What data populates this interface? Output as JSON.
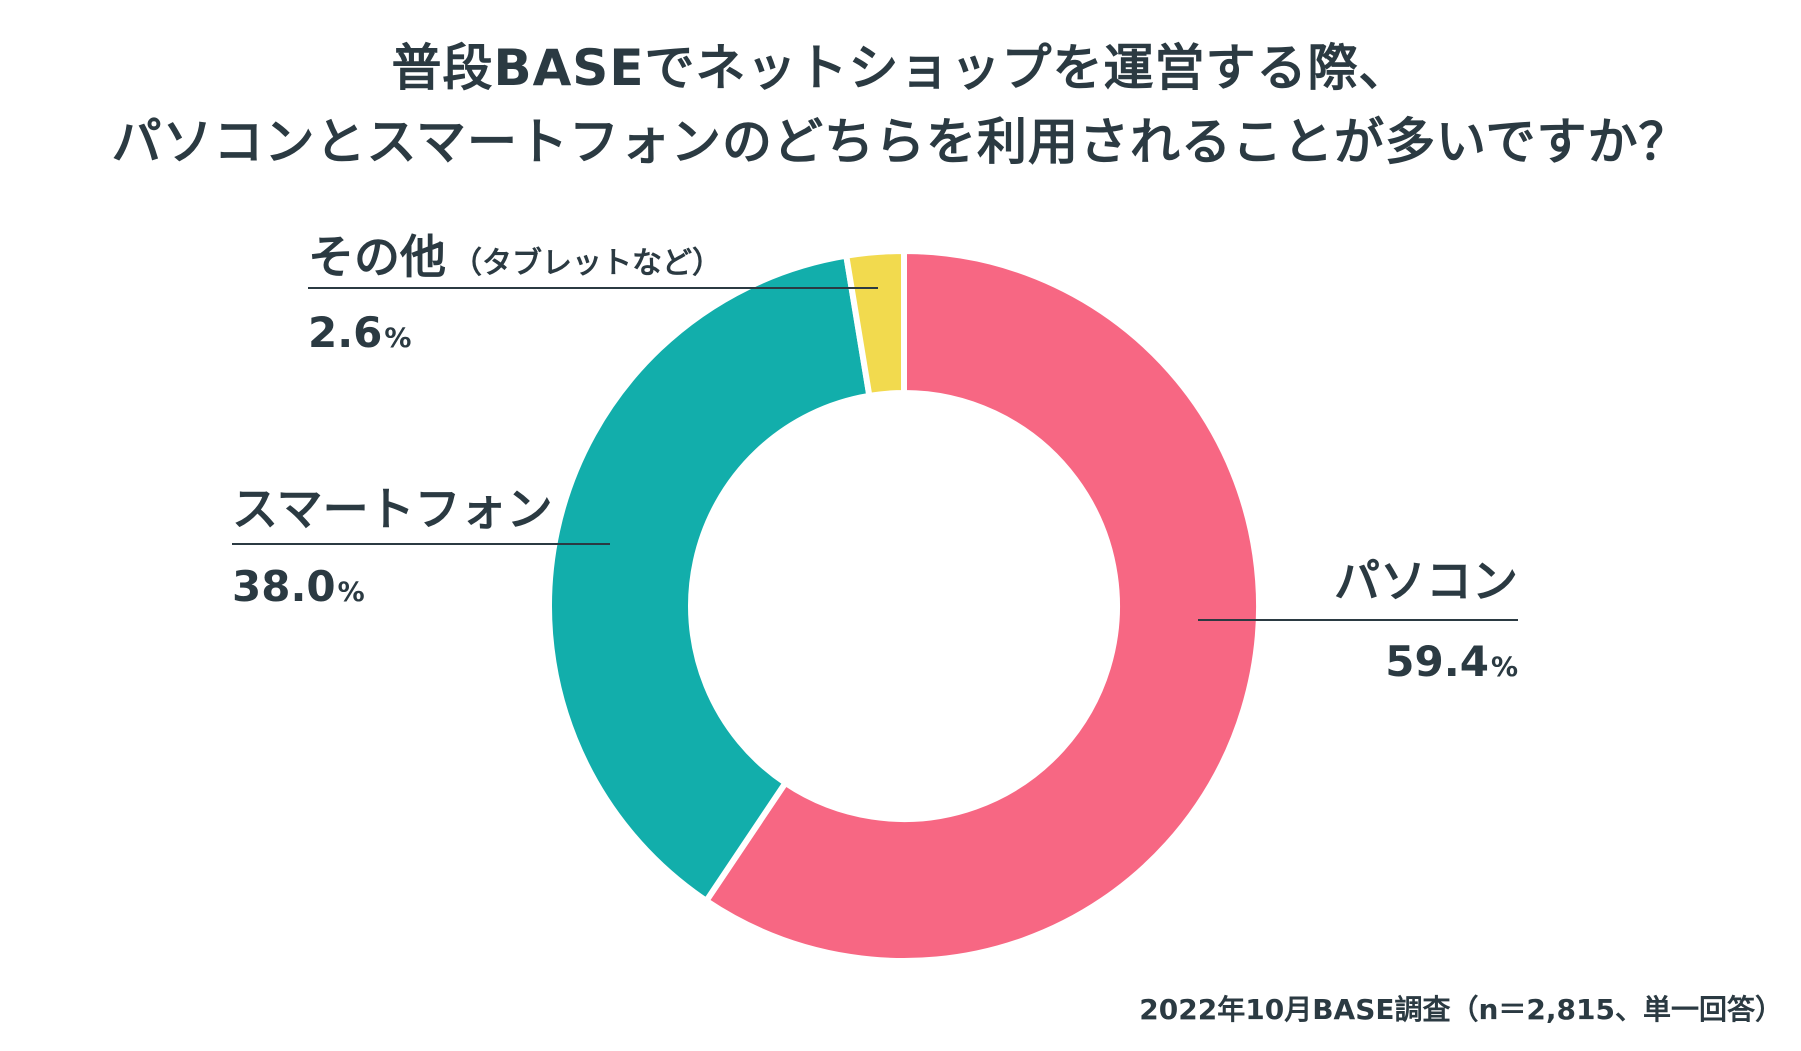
{
  "title": {
    "line1": "普段BASEでネットショップを運営する際、",
    "line2": "パソコンとスマートフォンのどちらを利用されることが多いですか？"
  },
  "chart_data": {
    "type": "pie",
    "variant": "donut",
    "title": "普段BASEでネットショップを運営する際、パソコンとスマートフォンのどちらを利用されることが多いですか？",
    "unit": "%",
    "slices": [
      {
        "label": "パソコン",
        "value": 59.4,
        "value_text": "59.4",
        "color": "#f76783"
      },
      {
        "label": "スマートフォン",
        "value": 38.0,
        "value_text": "38.0",
        "color": "#12aeab"
      },
      {
        "label": "その他",
        "label_note": "（タブレットなど）",
        "value": 2.6,
        "value_text": "2.6",
        "color": "#f2da4e"
      }
    ]
  },
  "colors": {
    "text": "#2b3a42",
    "background": "#ffffff"
  },
  "footnote": "2022年10月BASE調査（n＝2,815、単一回答）"
}
